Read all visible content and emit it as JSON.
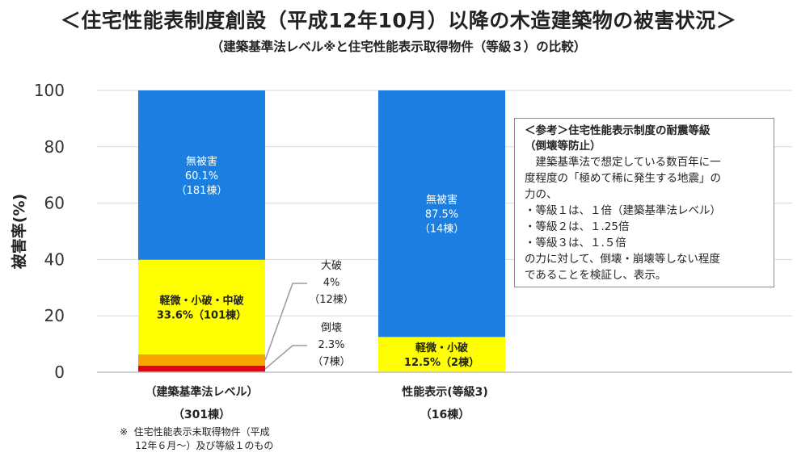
{
  "title": "＜住宅性能表制度創設（平成12年10月）以降の木造建築物の被害状況＞",
  "subtitle": "（建築基準法レベル※と住宅性能表示取得物件（等級３）の比較）",
  "chart_data": {
    "type": "bar",
    "stacked": true,
    "ylabel": "被害率(%)",
    "ylim": [
      0,
      100
    ],
    "yticks": [
      0,
      20,
      40,
      60,
      80,
      100
    ],
    "grid": true,
    "categories": [
      {
        "label": "（建築基準法レベル）",
        "sublabel": "（301棟）"
      },
      {
        "label": "性能表示(等級3)",
        "sublabel": "（16棟）"
      }
    ],
    "series": [
      {
        "name": "倒壊",
        "color": "#e60012",
        "values": [
          2.3,
          0
        ]
      },
      {
        "name": "大破",
        "color": "#f7a400",
        "values": [
          4.0,
          0
        ]
      },
      {
        "name": "軽微・小破・中破",
        "color": "#ffff00",
        "values": [
          33.6,
          12.5
        ]
      },
      {
        "name": "無被害",
        "color": "#1a7fe0",
        "values": [
          60.1,
          87.5
        ]
      }
    ],
    "bar_labels": [
      {
        "bar": 0,
        "series": 3,
        "lines": [
          "無被害",
          "60.1%",
          "（181棟）"
        ],
        "color": "#ffffff"
      },
      {
        "bar": 0,
        "series": 2,
        "lines": [
          "軽微・小破・中破",
          "33.6%（101棟）"
        ],
        "color": "#222222"
      },
      {
        "bar": 1,
        "series": 3,
        "lines": [
          "無被害",
          "87.5%",
          "（14棟）"
        ],
        "color": "#ffffff"
      },
      {
        "bar": 1,
        "series": 2,
        "lines": [
          "軽微・小破",
          "12.5%（2棟）"
        ],
        "color": "#222222"
      }
    ],
    "callouts": [
      {
        "bar": 0,
        "series": 1,
        "lines": [
          "大破",
          "4%",
          "（12棟）"
        ]
      },
      {
        "bar": 0,
        "series": 0,
        "lines": [
          "倒壊",
          "2.3%",
          "（7棟）"
        ]
      }
    ]
  },
  "note": {
    "title": "＜参考＞住宅性能表示制度の耐震等級\n（倒壊等防止）",
    "lines": [
      "　建築基準法で想定している数百年に一",
      "度程度の「極めて稀に発生する地震」の",
      "力の、",
      "・等級１は、１倍（建築基準法レベル）",
      "・等級２は、１.25倍",
      "・等級３は、１.５倍",
      "の力に対して、倒壊・崩壊等しない程度",
      "であることを検証し、表示。"
    ]
  },
  "footnote": "※  住宅性能表示未取得物件（平成\n     12年６月～）及び等級１のもの"
}
